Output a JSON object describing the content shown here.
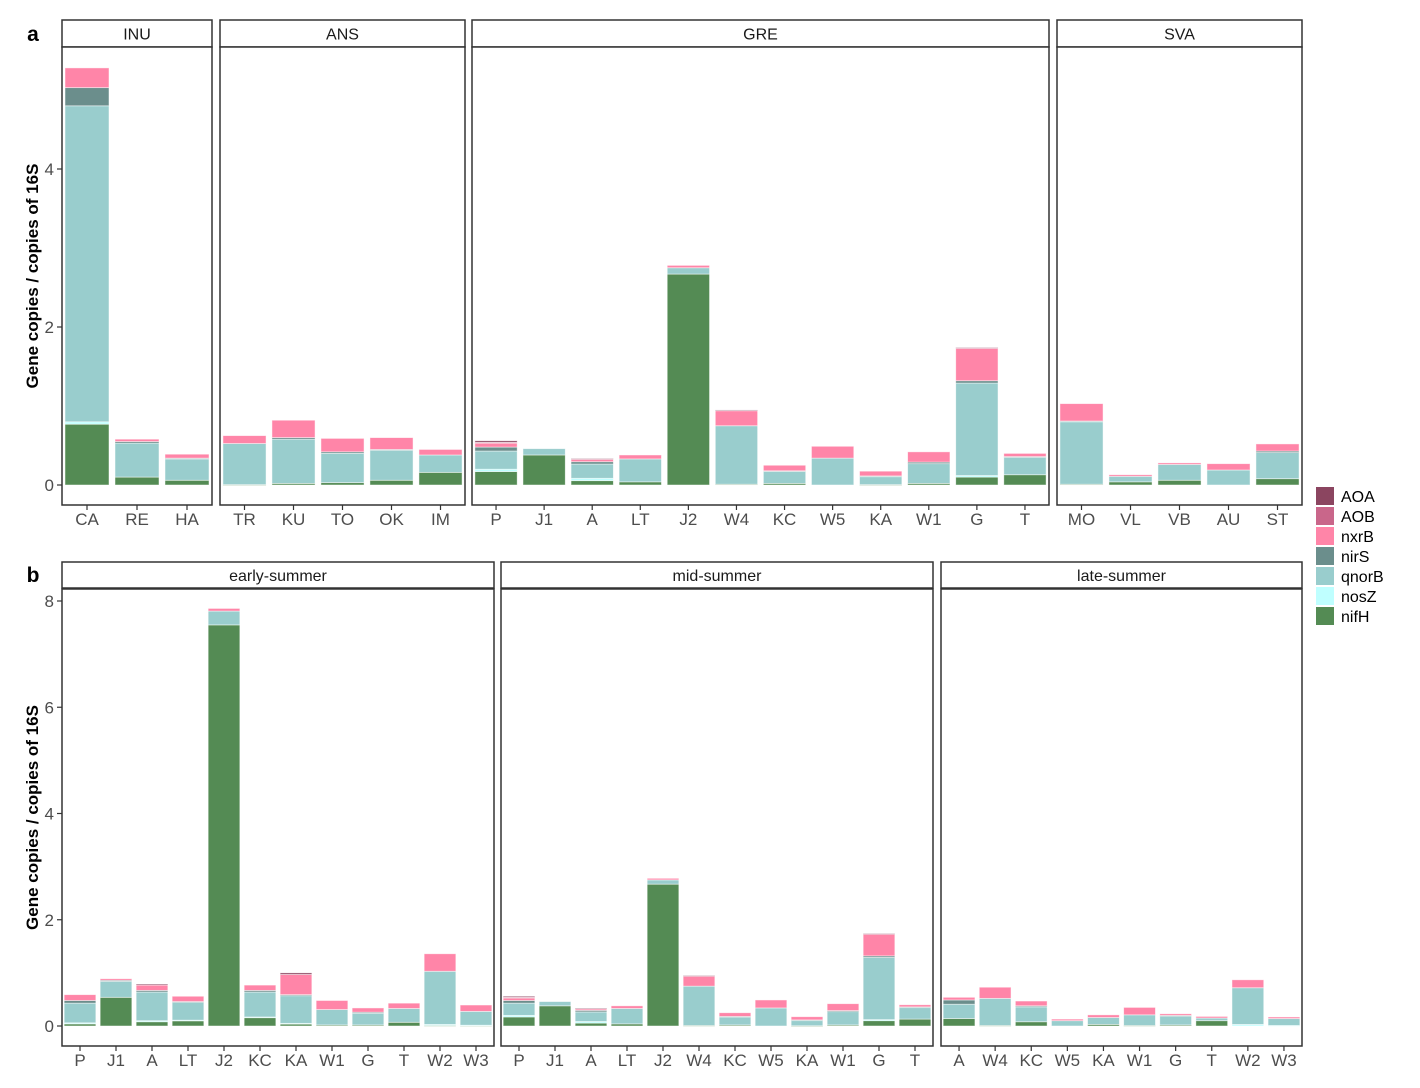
{
  "chart_data": {
    "type": "bar",
    "stacked": true,
    "series_order": [
      "nifH",
      "nosZ",
      "qnorB",
      "nirS",
      "nxrB",
      "AOB",
      "AOA"
    ],
    "colors": {
      "AOA": "#8B4560",
      "AOB": "#C9668A",
      "nxrB": "#FF85A8",
      "nirS": "#6B8E8C",
      "qnorB": "#99CDCD",
      "nosZ": "#BFFFFF",
      "nifH": "#548B54"
    },
    "legend": {
      "placement": "right",
      "entries": [
        "AOA",
        "AOB",
        "nxrB",
        "nirS",
        "qnorB",
        "nosZ",
        "nifH"
      ]
    },
    "panels": [
      {
        "tag": "a",
        "ylabel": "Gene copies / copies of 16S",
        "ylim": [
          -0.25,
          5.55
        ],
        "yticks": [
          0,
          2,
          4
        ],
        "facets": [
          {
            "title": "INU",
            "categories": [
              "CA",
              "RE",
              "HA"
            ],
            "values": [
              [
                0.77,
                0.03,
                4.0,
                0.23,
                0.25,
                0,
                0
              ],
              [
                0.1,
                0,
                0.43,
                0.02,
                0.03,
                0,
                0
              ],
              [
                0.06,
                0,
                0.27,
                0.01,
                0.05,
                0,
                0
              ]
            ]
          },
          {
            "title": "ANS",
            "categories": [
              "TR",
              "KU",
              "TO",
              "OK",
              "IM"
            ],
            "values": [
              [
                0.005,
                0,
                0.52,
                0,
                0.1,
                0,
                0
              ],
              [
                0.02,
                0,
                0.56,
                0.02,
                0.22,
                0,
                0
              ],
              [
                0.03,
                0,
                0.37,
                0.02,
                0.17,
                0,
                0
              ],
              [
                0.06,
                0,
                0.38,
                0.01,
                0.15,
                0,
                0
              ],
              [
                0.16,
                0,
                0.22,
                0,
                0.07,
                0,
                0
              ]
            ]
          },
          {
            "title": "GRE",
            "categories": [
              "P",
              "J1",
              "A",
              "LT",
              "J2",
              "W4",
              "KC",
              "W5",
              "KA",
              "W1",
              "G",
              "T"
            ],
            "values": [
              [
                0.17,
                0.03,
                0.23,
                0.05,
                0.05,
                0.01,
                0.02
              ],
              [
                0.38,
                0,
                0.08,
                0,
                0,
                0,
                0
              ],
              [
                0.055,
                0.03,
                0.18,
                0.03,
                0.03,
                0,
                0.01
              ],
              [
                0.04,
                0,
                0.29,
                0,
                0.05,
                0,
                0
              ],
              [
                2.67,
                0,
                0.08,
                0,
                0.03,
                0,
                0
              ],
              [
                0.01,
                0,
                0.74,
                0,
                0.19,
                0,
                0.01
              ],
              [
                0.02,
                0,
                0.15,
                0.01,
                0.07,
                0,
                0
              ],
              [
                0,
                0,
                0.34,
                0,
                0.15,
                0,
                0
              ],
              [
                0.005,
                0,
                0.1,
                0.01,
                0.06,
                0,
                0
              ],
              [
                0.02,
                0,
                0.25,
                0.02,
                0.13,
                0,
                0
              ],
              [
                0.1,
                0.02,
                1.17,
                0.03,
                0.41,
                0,
                0.01
              ],
              [
                0.13,
                0,
                0.22,
                0.01,
                0.04,
                0,
                0
              ]
            ]
          },
          {
            "title": "SVA",
            "categories": [
              "MO",
              "VL",
              "VB",
              "AU",
              "ST"
            ],
            "values": [
              [
                0.01,
                0,
                0.79,
                0.01,
                0.22,
                0,
                0
              ],
              [
                0.04,
                0,
                0.07,
                0,
                0.02,
                0,
                0
              ],
              [
                0.06,
                0,
                0.2,
                0,
                0.02,
                0,
                0
              ],
              [
                0,
                0,
                0.19,
                0,
                0.08,
                0,
                0
              ],
              [
                0.08,
                0,
                0.33,
                0.02,
                0.09,
                0,
                0
              ]
            ]
          }
        ]
      },
      {
        "tag": "b",
        "ylabel": "Gene copies / copies of 16S",
        "ylim": [
          -0.4,
          8.2
        ],
        "yticks": [
          0,
          2,
          4,
          6,
          8
        ],
        "facets": [
          {
            "title": "early-summer",
            "categories": [
              "P",
              "J1",
              "A",
              "LT",
              "J2",
              "KC",
              "KA",
              "W1",
              "G",
              "T",
              "W2",
              "W3"
            ],
            "values": [
              [
                0.04,
                0.02,
                0.37,
                0.05,
                0.11,
                0,
                0
              ],
              [
                0.54,
                0,
                0.3,
                0.02,
                0.03,
                0,
                0
              ],
              [
                0.08,
                0.02,
                0.54,
                0.03,
                0.1,
                0,
                0.02
              ],
              [
                0.1,
                0.01,
                0.34,
                0.01,
                0.1,
                0,
                0
              ],
              [
                7.55,
                0,
                0.26,
                0,
                0.05,
                0,
                0
              ],
              [
                0.16,
                0.01,
                0.47,
                0.03,
                0.1,
                0,
                0
              ],
              [
                0.04,
                0.01,
                0.52,
                0.02,
                0.38,
                0,
                0.03
              ],
              [
                0.02,
                0,
                0.29,
                0,
                0.17,
                0,
                0
              ],
              [
                0.02,
                0,
                0.22,
                0.02,
                0.08,
                0,
                0
              ],
              [
                0.07,
                0,
                0.26,
                0,
                0.1,
                0,
                0
              ],
              [
                0.01,
                0.02,
                1.0,
                0,
                0.33,
                0,
                0
              ],
              [
                0.005,
                0.01,
                0.26,
                0,
                0.12,
                0,
                0
              ]
            ]
          },
          {
            "title": "mid-summer",
            "categories": [
              "P",
              "J1",
              "A",
              "LT",
              "J2",
              "W4",
              "KC",
              "W5",
              "KA",
              "W1",
              "G",
              "T"
            ],
            "values": [
              [
                0.17,
                0.03,
                0.23,
                0.05,
                0.05,
                0.01,
                0.02
              ],
              [
                0.38,
                0,
                0.08,
                0,
                0,
                0,
                0
              ],
              [
                0.055,
                0.03,
                0.18,
                0.03,
                0.03,
                0,
                0.01
              ],
              [
                0.04,
                0,
                0.29,
                0,
                0.05,
                0,
                0
              ],
              [
                2.67,
                0,
                0.08,
                0,
                0.03,
                0,
                0
              ],
              [
                0.01,
                0,
                0.74,
                0,
                0.19,
                0,
                0.01
              ],
              [
                0.02,
                0,
                0.15,
                0.01,
                0.07,
                0,
                0
              ],
              [
                0,
                0,
                0.34,
                0,
                0.15,
                0,
                0
              ],
              [
                0.005,
                0,
                0.1,
                0.01,
                0.06,
                0,
                0
              ],
              [
                0.02,
                0,
                0.25,
                0.02,
                0.13,
                0,
                0
              ],
              [
                0.1,
                0.02,
                1.17,
                0.03,
                0.41,
                0,
                0.01
              ],
              [
                0.13,
                0,
                0.22,
                0.01,
                0.04,
                0,
                0
              ]
            ]
          },
          {
            "title": "late-summer",
            "categories": [
              "A",
              "W4",
              "KC",
              "W5",
              "KA",
              "W1",
              "G",
              "T",
              "W2",
              "W3"
            ],
            "values": [
              [
                0.14,
                0,
                0.27,
                0.08,
                0.05,
                0,
                0
              ],
              [
                0.01,
                0,
                0.51,
                0,
                0.21,
                0,
                0
              ],
              [
                0.08,
                0,
                0.28,
                0.02,
                0.09,
                0,
                0
              ],
              [
                0,
                0,
                0.1,
                0,
                0.03,
                0,
                0
              ],
              [
                0.03,
                0,
                0.13,
                0,
                0.05,
                0,
                0
              ],
              [
                0.01,
                0,
                0.2,
                0,
                0.14,
                0,
                0
              ],
              [
                0.02,
                0,
                0.17,
                0.01,
                0.03,
                0,
                0
              ],
              [
                0.1,
                0,
                0.05,
                0,
                0.03,
                0,
                0
              ],
              [
                0,
                0.03,
                0.69,
                0,
                0.15,
                0,
                0
              ],
              [
                0,
                0.01,
                0.13,
                0,
                0.03,
                0,
                0
              ]
            ]
          }
        ]
      }
    ]
  }
}
